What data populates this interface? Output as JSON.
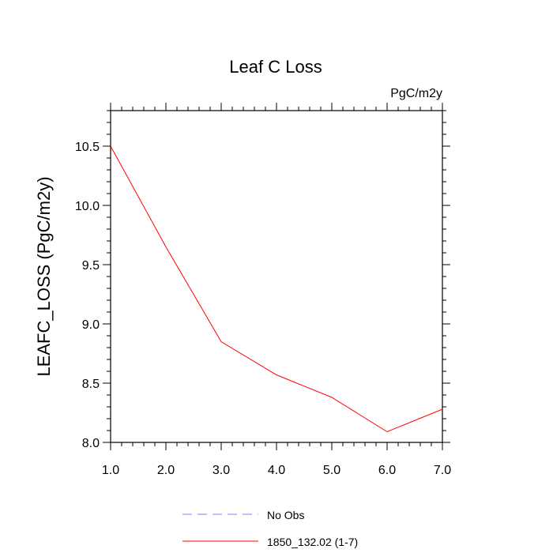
{
  "chart_data": {
    "type": "line",
    "title": "Leaf C Loss",
    "units_label": "PgC/m2y",
    "xlabel": "",
    "ylabel": "LEAFC_LOSS  (PgC/m2y)",
    "xlim": [
      1.0,
      7.0
    ],
    "ylim": [
      8.0,
      10.8
    ],
    "x_ticks": [
      1.0,
      2.0,
      3.0,
      4.0,
      5.0,
      6.0,
      7.0
    ],
    "x_tick_labels": [
      "1.0",
      "2.0",
      "3.0",
      "4.0",
      "5.0",
      "6.0",
      "7.0"
    ],
    "y_ticks": [
      8.0,
      8.5,
      9.0,
      9.5,
      10.0,
      10.5
    ],
    "y_tick_labels": [
      "8.0",
      "8.5",
      "9.0",
      "9.5",
      "10.0",
      "10.5"
    ],
    "y_minor_step": 0.1,
    "x_minor_step": 0.2,
    "grid": false,
    "legend_position": "bottom-center",
    "series": [
      {
        "name": "1850_132.02 (1-7)",
        "color": "#ff0000",
        "dash": "solid",
        "x": [
          1,
          2,
          3,
          4,
          5,
          6,
          7
        ],
        "y": [
          10.5,
          9.65,
          8.85,
          8.57,
          8.38,
          8.09,
          8.28
        ]
      }
    ],
    "legend": [
      {
        "label": "No Obs",
        "color": "#8080ff",
        "dash": "dashed"
      },
      {
        "label": "1850_132.02 (1-7)",
        "color": "#ff0000",
        "dash": "solid"
      }
    ]
  }
}
